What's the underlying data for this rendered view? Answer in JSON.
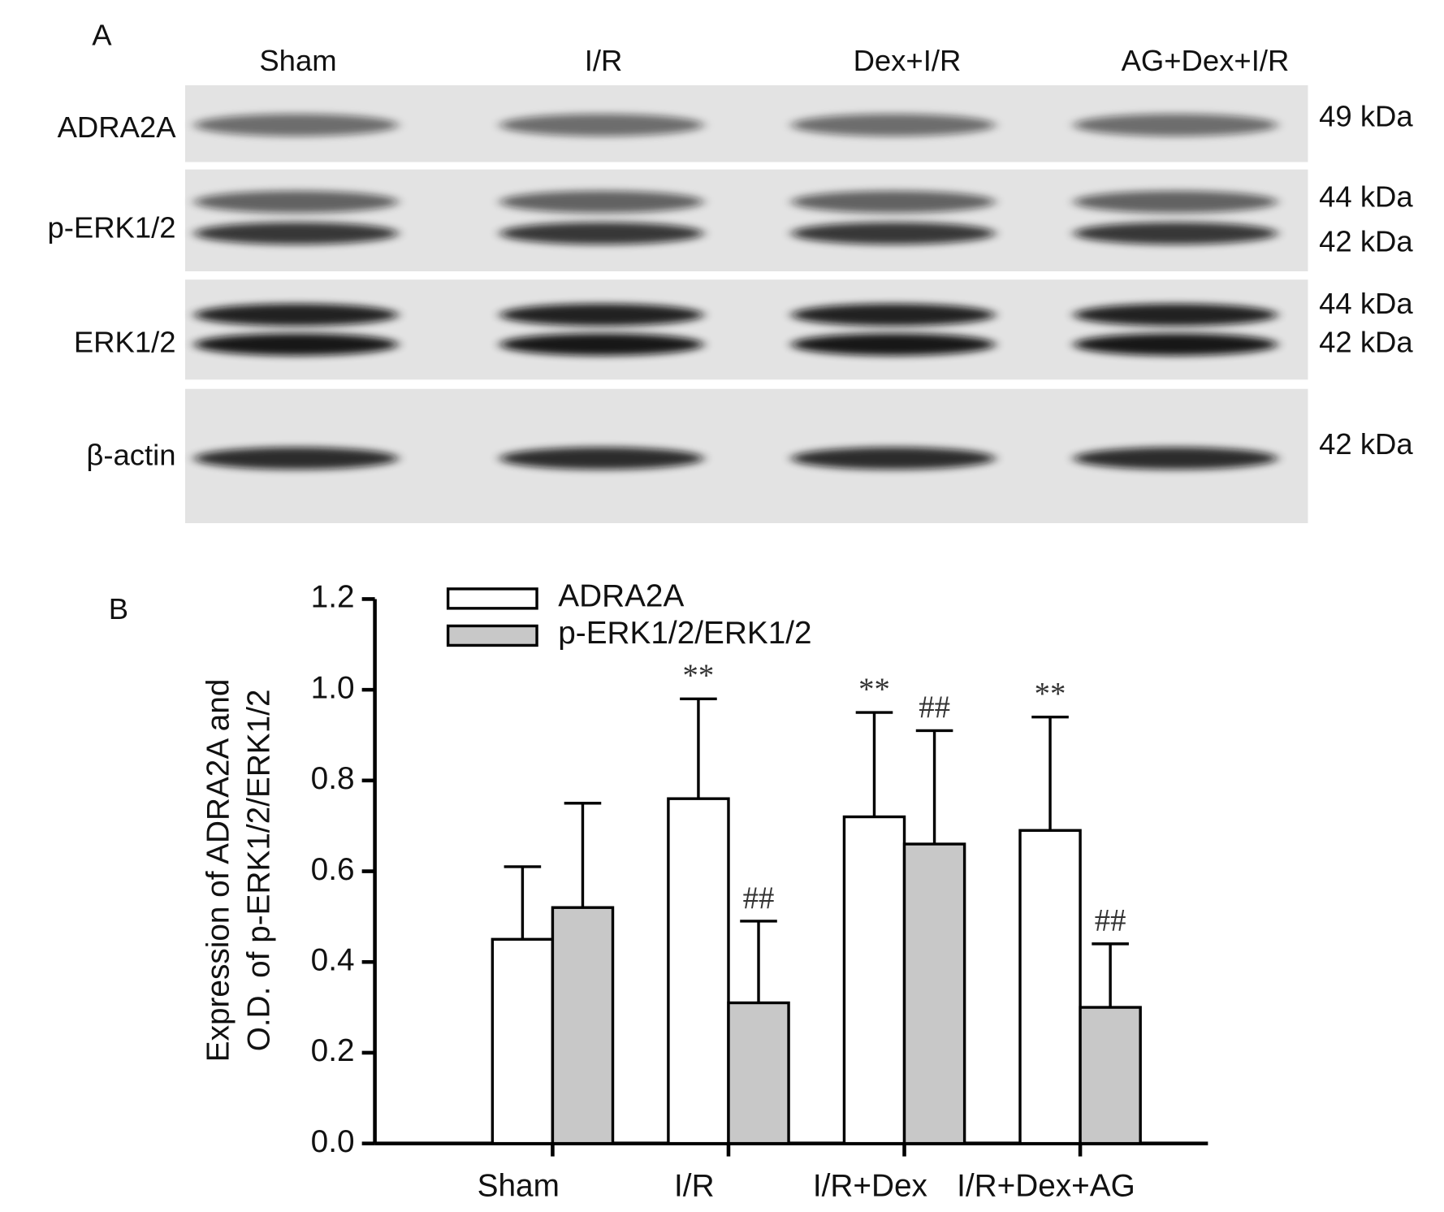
{
  "panel_a": {
    "label": "A",
    "lanes": [
      "Sham",
      "I/R",
      "Dex+I/R",
      "AG+Dex+I/R"
    ],
    "rows": [
      {
        "label": "ADRA2A",
        "kda": [
          "49 kDa"
        ]
      },
      {
        "label": "p-ERK1/2",
        "kda": [
          "44 kDa",
          "42 kDa"
        ]
      },
      {
        "label": "ERK1/2",
        "kda": [
          "44 kDa",
          "42 kDa"
        ]
      },
      {
        "label": "β-actin",
        "kda": [
          "42 kDa"
        ]
      }
    ]
  },
  "chart_data": {
    "type": "bar",
    "panel_label": "B",
    "y_label": [
      "Expression of ADRA2A and",
      "O.D. of p-ERK1/2/ERK1/2"
    ],
    "categories": [
      "Sham",
      "I/R",
      "I/R+Dex",
      "I/R+Dex+AG"
    ],
    "series": [
      {
        "name": "ADRA2A",
        "color": "#ffffff",
        "values": [
          0.45,
          0.76,
          0.72,
          0.69
        ],
        "errors": [
          0.16,
          0.22,
          0.23,
          0.25
        ],
        "annotations": [
          null,
          "**",
          "**",
          "**"
        ]
      },
      {
        "name": "p-ERK1/2/ERK1/2",
        "color": "#c8c8c8",
        "values": [
          0.52,
          0.31,
          0.66,
          0.3
        ],
        "errors": [
          0.23,
          0.18,
          0.25,
          0.14
        ],
        "annotations": [
          null,
          "##",
          "##",
          "##"
        ]
      }
    ],
    "ylim": [
      0,
      1.2
    ],
    "yticks": [
      {
        "value": 0,
        "label": "0.0"
      },
      0.2,
      0.4,
      0.6,
      0.8,
      {
        "value": 1,
        "label": "1.0"
      },
      1.2
    ]
  }
}
